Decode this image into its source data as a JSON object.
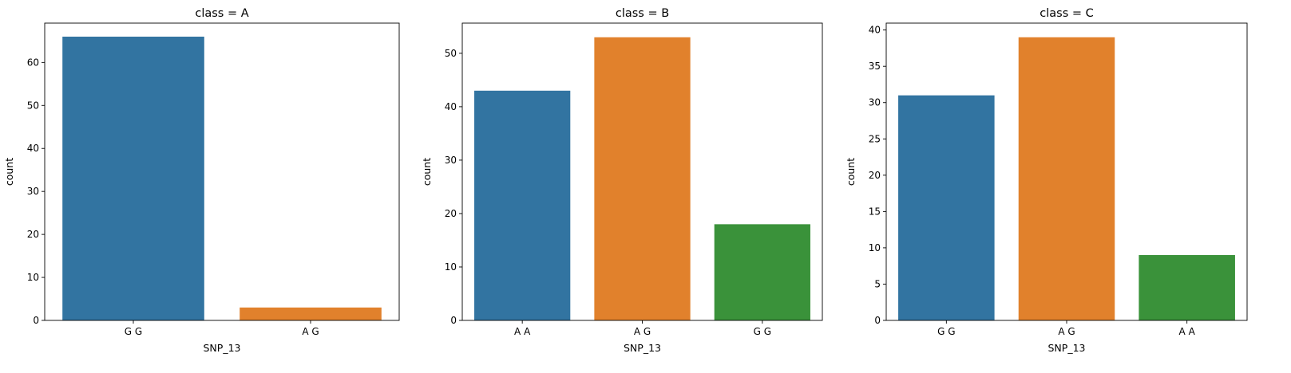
{
  "chart_data": [
    {
      "type": "bar",
      "title": "class = A",
      "xlabel": "SNP_13",
      "ylabel": "count",
      "categories": [
        "G G",
        "A G"
      ],
      "values": [
        66,
        3
      ],
      "colors": [
        "#3274a1",
        "#e1812c"
      ],
      "ylim": [
        0,
        69.15
      ],
      "yticks": [
        0,
        10,
        20,
        30,
        40,
        50,
        60
      ],
      "grid": false
    },
    {
      "type": "bar",
      "title": "class = B",
      "xlabel": "SNP_13",
      "ylabel": "count",
      "categories": [
        "A A",
        "A G",
        "G G"
      ],
      "values": [
        43,
        53,
        18
      ],
      "colors": [
        "#3274a1",
        "#e1812c",
        "#3a923a"
      ],
      "ylim": [
        0,
        55.65
      ],
      "yticks": [
        0,
        10,
        20,
        30,
        40,
        50
      ],
      "grid": false
    },
    {
      "type": "bar",
      "title": "class = C",
      "xlabel": "SNP_13",
      "ylabel": "count",
      "categories": [
        "G G",
        "A G",
        "A A"
      ],
      "values": [
        31,
        39,
        9
      ],
      "colors": [
        "#3274a1",
        "#e1812c",
        "#3a923a"
      ],
      "ylim": [
        0,
        40.95
      ],
      "yticks": [
        0,
        5,
        10,
        15,
        20,
        25,
        30,
        35,
        40
      ],
      "grid": false
    }
  ]
}
